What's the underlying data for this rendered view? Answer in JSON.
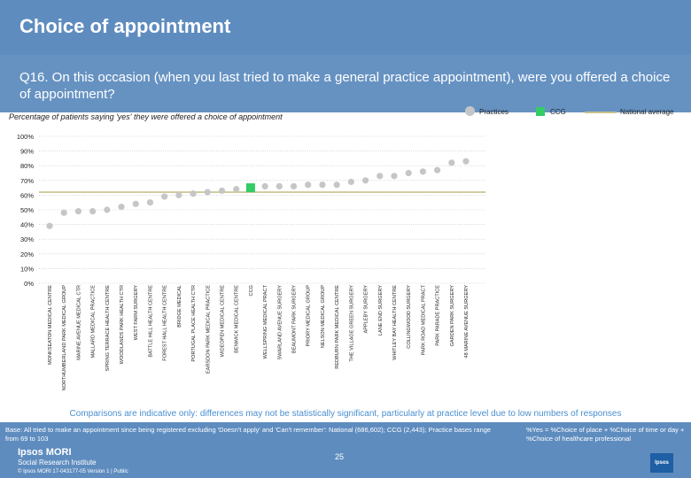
{
  "header": {
    "title": "Choice of appointment"
  },
  "question": "Q16. On this occasion (when you last tried to make a general practice appointment), were you offered a choice of appointment?",
  "subtitle": "Percentage of patients saying 'yes' they were offered a choice of appointment",
  "legend": {
    "practices": "Practices",
    "ccg": "CCG",
    "national": "National average"
  },
  "colors": {
    "practice": "#c6c6c6",
    "ccg": "#33cc66",
    "national": "#c8c08a",
    "grid": "#bfbfbf",
    "header": "#5e8cbf"
  },
  "chart_data": {
    "type": "scatter",
    "title": "Percentage of patients saying 'yes' they were offered a choice of appointment",
    "ylim": [
      0,
      100
    ],
    "y_ticks": [
      "0%",
      "10%",
      "20%",
      "30%",
      "40%",
      "50%",
      "60%",
      "70%",
      "80%",
      "90%",
      "100%"
    ],
    "national_average": 62,
    "categories": [
      "MONKSEATON MEDICAL CENTRE",
      "NORTHUMBERLAND PARK MEDICAL GROUP",
      "MARINE AVENUE MEDICAL CTR",
      "MALLARD MEDICAL PRACTICE",
      "SPRING TERRACE HEALTH CENTRE",
      "WOODLANDS PARK HEALTH CTR",
      "WEST FARM SURGERY",
      "BATTLE HILL HEALTH CENTRE",
      "FOREST HALL HEALTH CENTRE",
      "BRIDGE MEDICAL",
      "PORTUGAL PLACE HEALTH CTR",
      "EARSDON PARK MEDICAL PRACTICE",
      "WIDEOPEN MEDICAL CENTRE",
      "BENWICK MEDICAL CENTRE",
      "CCG",
      "WELLSPRING MEDICAL PRACT",
      "SWARLAND AVENUE SURGERY",
      "BEAUMONT PARK SURGERY",
      "PRIORY MEDICAL GROUP",
      "NELSON MEDICAL GROUP",
      "REDBURN PARK MEDICAL CENTRE",
      "THE VILLAGE GREEN SURGERY",
      "APPLEBY SURGERY",
      "LANE END SURGERY",
      "WHITLEY BAY HEALTH CENTRE",
      "COLLINGWOOD SURGERY",
      "PARK ROAD MEDICAL PRACT",
      "PARK PARADE PRACTICE",
      "GARDEN PARK SURGERY",
      "48 MARINE AVENUE SURGERY"
    ],
    "values": [
      39,
      48,
      49,
      49,
      50,
      52,
      54,
      55,
      59,
      60,
      61,
      62,
      63,
      64,
      65,
      66,
      66,
      66,
      67,
      67,
      67,
      69,
      70,
      73,
      73,
      75,
      76,
      77,
      82,
      83
    ],
    "ccg_index": 14
  },
  "footer": {
    "comparisons": "Comparisons are indicative only: differences may not be statistically significant, particularly at practice level due to low numbers of responses",
    "base": "Base: All tried to make an appointment since being registered excluding 'Doesn't apply' and 'Can't remember': National (686,602); CCG (2,443); Practice bases range from 69 to 103",
    "note": "%Yes = %Choice of place + %Choice of time or day + %Choice of healthcare professional",
    "logo": "Ipsos MORI",
    "logo_sub": "Social Research Institute",
    "copyright": "© Ipsos MORI     17-043177-05 Version 1 | Public",
    "page": "25",
    "logo_mark": "Ipsos"
  }
}
